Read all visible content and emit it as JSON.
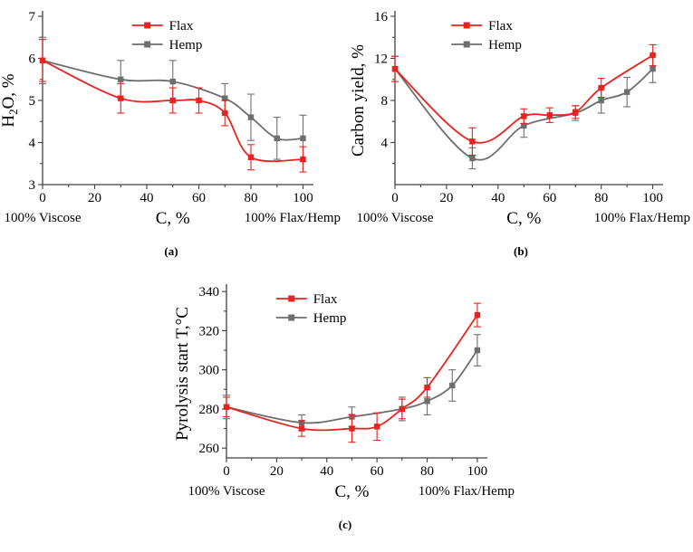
{
  "colors": {
    "flax": "#e8231f",
    "hemp": "#6e6e6e",
    "axis": "#404040",
    "text": "#000000"
  },
  "chart_data": [
    {
      "type": "line",
      "caption": "(a)",
      "xlabel": "C, %",
      "ylabel": "H2O, %",
      "ylabel_parts": [
        {
          "t": "H"
        },
        {
          "t": "2",
          "sub": true
        },
        {
          "t": "O, %"
        }
      ],
      "x_left_label": "100% Viscose",
      "x_right_label": "100% Flax/Hemp",
      "xlim": [
        0,
        104
      ],
      "xticks": [
        0,
        20,
        40,
        60,
        80,
        100
      ],
      "x_minor": 10,
      "ylim": [
        3,
        7
      ],
      "yticks": [
        3,
        4,
        5,
        6,
        7
      ],
      "y_minor": 0.5,
      "legend": [
        "Flax",
        "Hemp"
      ],
      "legend_position": "top-center",
      "grid": false,
      "series": [
        {
          "name": "Flax",
          "color": "#e8231f",
          "x": [
            0,
            30,
            50,
            60,
            70,
            80,
            100
          ],
          "y": [
            5.95,
            5.05,
            5.0,
            5.0,
            4.7,
            3.65,
            3.6
          ],
          "err": [
            0.5,
            0.35,
            0.3,
            0.3,
            0.3,
            0.3,
            0.3
          ]
        },
        {
          "name": "Hemp",
          "color": "#6e6e6e",
          "x": [
            0,
            30,
            50,
            70,
            80,
            90,
            100
          ],
          "y": [
            5.95,
            5.5,
            5.45,
            5.05,
            4.6,
            4.1,
            4.1
          ],
          "err": [
            0.55,
            0.45,
            0.5,
            0.35,
            0.55,
            0.5,
            0.55
          ]
        }
      ]
    },
    {
      "type": "line",
      "caption": "(b)",
      "xlabel": "C, %",
      "ylabel": "Carbon yield, %",
      "ylabel_parts": [
        {
          "t": "Carbon yield, %"
        }
      ],
      "x_left_label": "100% Viscose",
      "x_right_label": "100% Flax/Hemp",
      "xlim": [
        0,
        104
      ],
      "xticks": [
        0,
        20,
        40,
        60,
        80,
        100
      ],
      "x_minor": 10,
      "ylim": [
        0,
        16
      ],
      "yticks": [
        4,
        8,
        12,
        16
      ],
      "y_minor": 2,
      "legend": [
        "Flax",
        "Hemp"
      ],
      "legend_position": "top-center",
      "grid": false,
      "series": [
        {
          "name": "Flax",
          "color": "#e8231f",
          "x": [
            0,
            30,
            50,
            60,
            70,
            80,
            100
          ],
          "y": [
            11.0,
            4.1,
            6.5,
            6.6,
            6.9,
            9.2,
            12.3
          ],
          "err": [
            1.2,
            1.3,
            0.7,
            0.7,
            0.6,
            0.9,
            1.0
          ]
        },
        {
          "name": "Hemp",
          "color": "#6e6e6e",
          "x": [
            0,
            30,
            50,
            70,
            80,
            90,
            100
          ],
          "y": [
            11.0,
            2.5,
            5.6,
            6.8,
            8.0,
            8.8,
            11.0
          ],
          "err": [
            1.2,
            1.0,
            1.1,
            0.7,
            1.2,
            1.4,
            1.3
          ]
        }
      ]
    },
    {
      "type": "line",
      "caption": "(c)",
      "xlabel": "C, %",
      "ylabel": "Pyrolysis start T,°C",
      "ylabel_parts": [
        {
          "t": "Pyrolysis start T,°C"
        }
      ],
      "x_left_label": "100% Viscose",
      "x_right_label": "100% Flax/Hemp",
      "xlim": [
        0,
        104
      ],
      "xticks": [
        0,
        20,
        40,
        60,
        80,
        100
      ],
      "x_minor": 10,
      "ylim": [
        255,
        341
      ],
      "yticks": [
        260,
        280,
        300,
        320,
        340
      ],
      "y_minor": 10,
      "legend": [
        "Flax",
        "Hemp"
      ],
      "legend_position": "top-center",
      "grid": false,
      "series": [
        {
          "name": "Flax",
          "color": "#e8231f",
          "x": [
            0,
            30,
            50,
            60,
            70,
            80,
            100
          ],
          "y": [
            281,
            270,
            270,
            271,
            280,
            291,
            328
          ],
          "err": [
            5,
            4,
            7,
            7,
            5,
            5,
            6
          ]
        },
        {
          "name": "Hemp",
          "color": "#6e6e6e",
          "x": [
            0,
            30,
            50,
            70,
            80,
            90,
            100
          ],
          "y": [
            281,
            273,
            276,
            280,
            284,
            292,
            310
          ],
          "err": [
            6,
            4,
            5,
            6,
            7,
            8,
            8
          ]
        }
      ]
    }
  ]
}
